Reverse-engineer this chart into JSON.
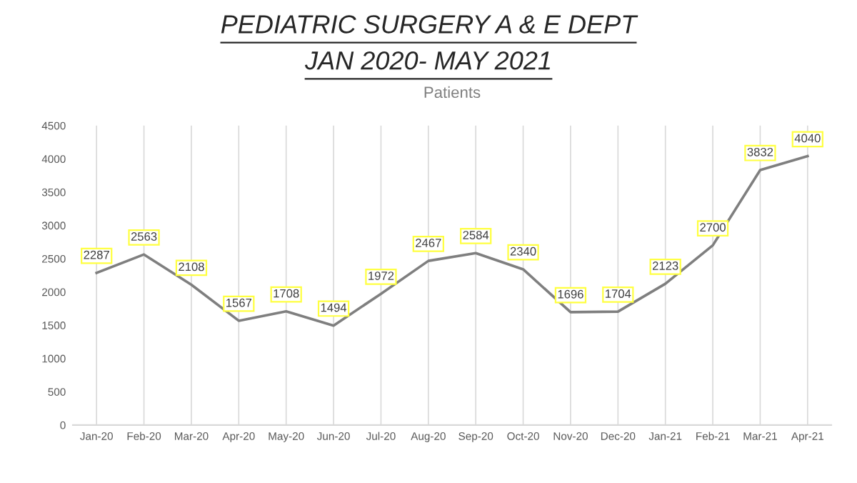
{
  "chart_data": {
    "type": "line",
    "title": "PEDIATRIC SURGERY A & E DEPT\nJAN 2020- MAY 2021",
    "subtitle": "Patients",
    "categories": [
      "Jan-20",
      "Feb-20",
      "Mar-20",
      "Apr-20",
      "May-20",
      "Jun-20",
      "Jul-20",
      "Aug-20",
      "Sep-20",
      "Oct-20",
      "Nov-20",
      "Dec-20",
      "Jan-21",
      "Feb-21",
      "Mar-21",
      "Apr-21"
    ],
    "series": [
      {
        "color": "#7f7f7f",
        "values": [
          2287,
          2563,
          2108,
          1567,
          1708,
          1494,
          1972,
          2467,
          2584,
          2340,
          1696,
          1704,
          2123,
          2700,
          3832,
          4040
        ]
      }
    ],
    "ylim": [
      0,
      4500
    ],
    "yticks": [
      0,
      500,
      1000,
      1500,
      2000,
      2500,
      3000,
      3500,
      4000,
      4500
    ],
    "grid": "x",
    "legend": false,
    "marker": "none",
    "line_style": "solid",
    "data_labels": true
  }
}
